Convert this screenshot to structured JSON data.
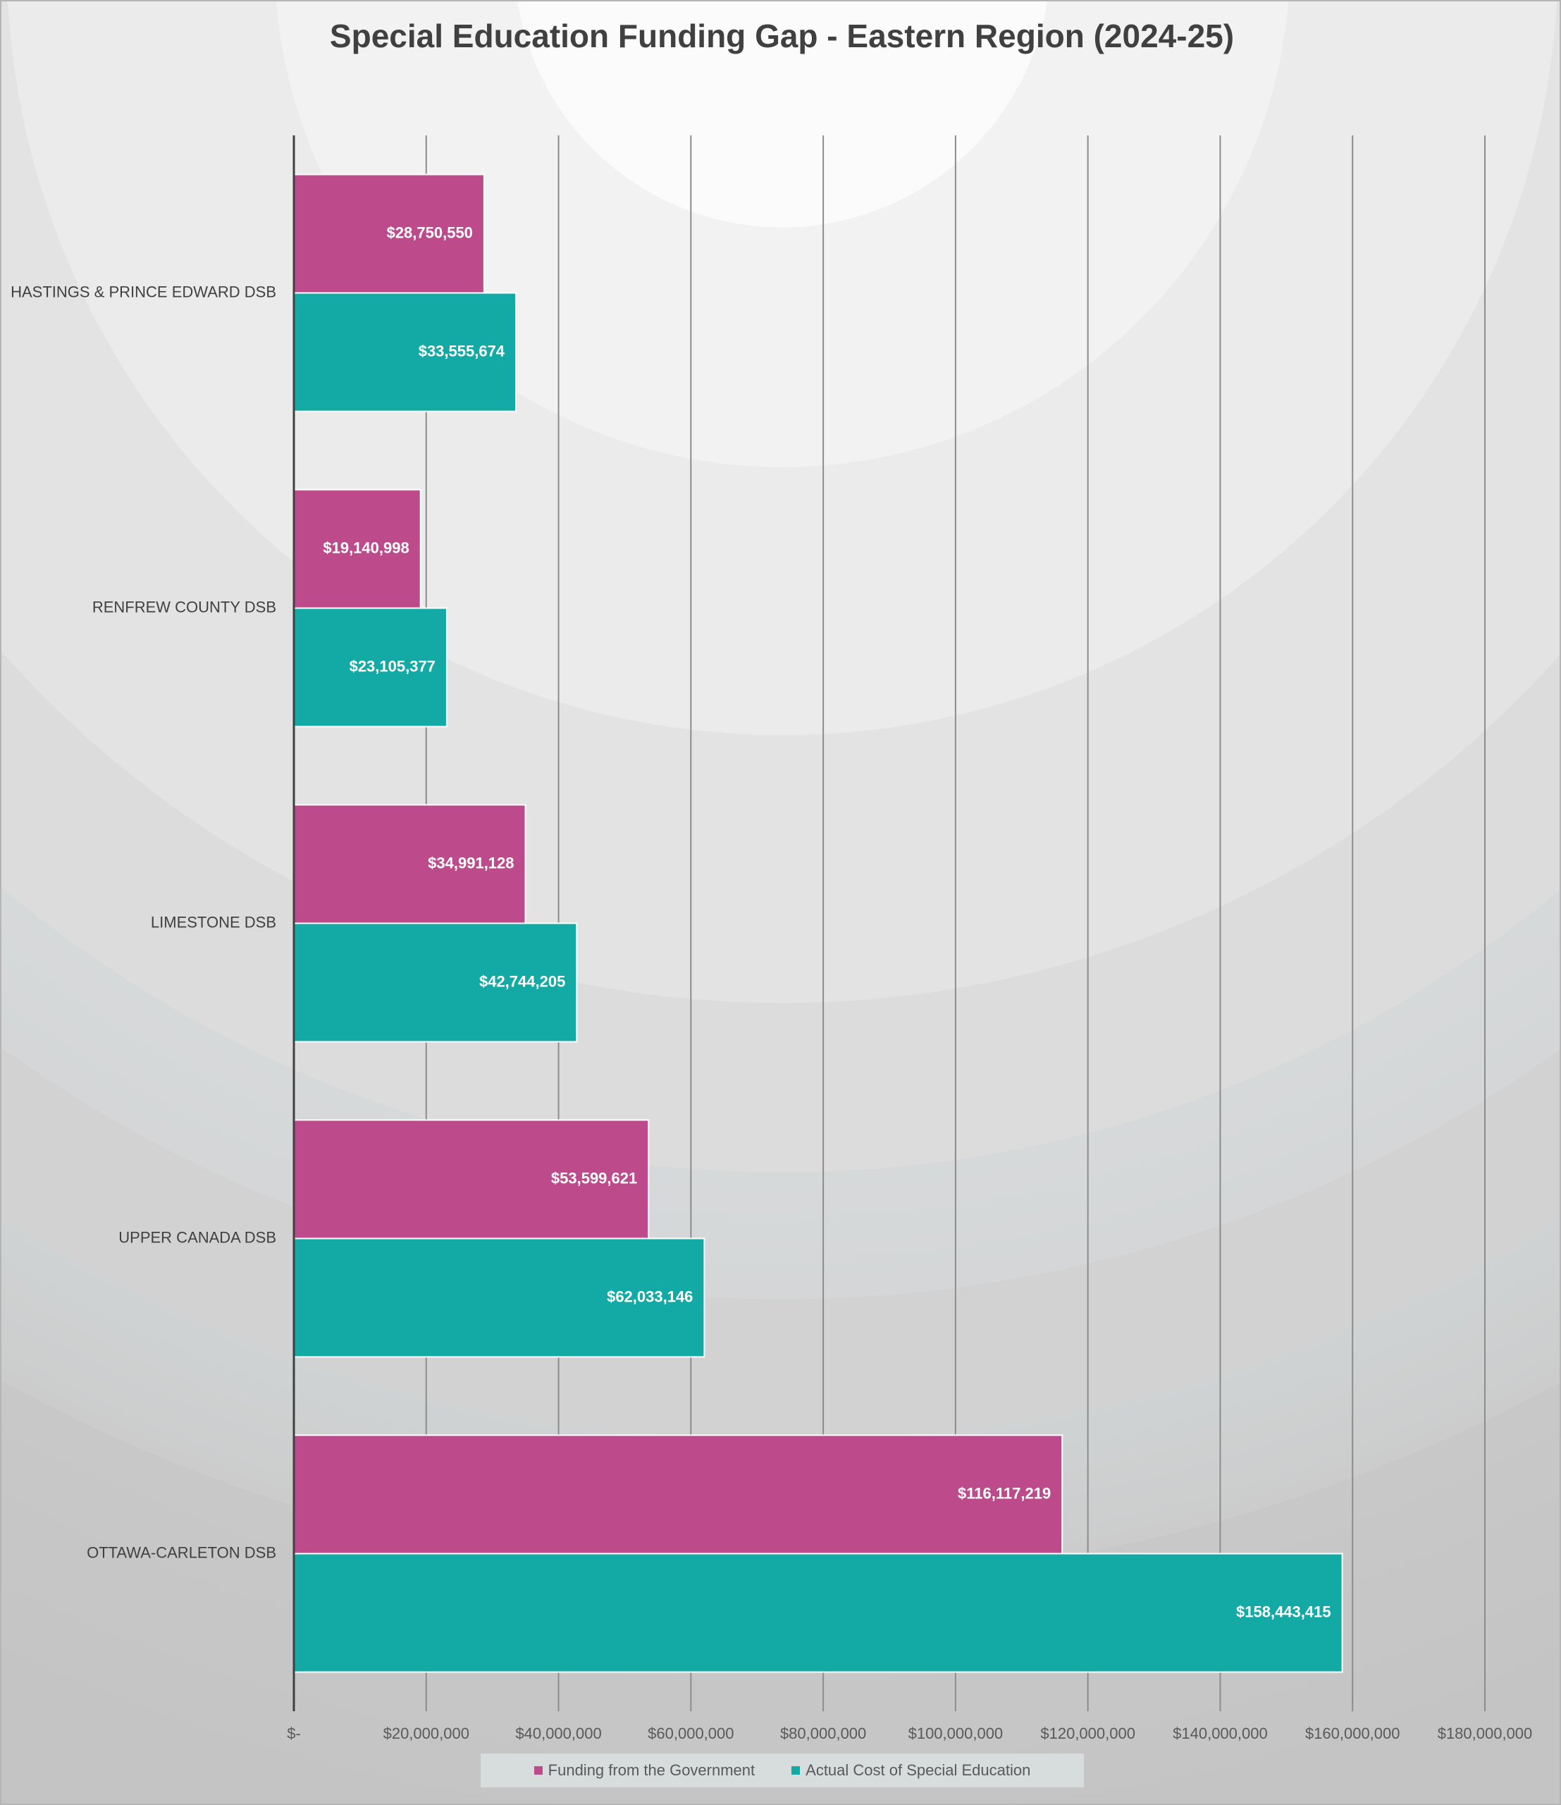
{
  "chart_data": {
    "type": "bar",
    "orientation": "horizontal",
    "title": "Special Education Funding Gap - Eastern Region (2024-25)",
    "categories": [
      "HASTINGS & PRINCE EDWARD DSB",
      "RENFREW COUNTY DSB",
      "LIMESTONE DSB",
      "UPPER CANADA DSB",
      "OTTAWA-CARLETON DSB"
    ],
    "series": [
      {
        "name": "Funding from the Government",
        "color": "#bd4b8c",
        "values": [
          28750550,
          19140998,
          34991128,
          53599621,
          116117219
        ],
        "labels": [
          "$28,750,550",
          "$19,140,998",
          "$34,991,128",
          "$53,599,621",
          "$116,117,219"
        ]
      },
      {
        "name": "Actual Cost of Special Education",
        "color": "#13aaa6",
        "values": [
          33555674,
          23105377,
          42744205,
          62033146,
          158443415
        ],
        "labels": [
          "$33,555,674",
          "$23,105,377",
          "$42,744,205",
          "$62,033,146",
          "$158,443,415"
        ]
      }
    ],
    "xlim": [
      0,
      180000000
    ],
    "xticks": [
      0,
      20000000,
      40000000,
      60000000,
      80000000,
      100000000,
      120000000,
      140000000,
      160000000,
      180000000
    ],
    "xtick_labels": [
      "$-",
      "$20,000,000",
      "$40,000,000",
      "$60,000,000",
      "$80,000,000",
      "$100,000,000",
      "$120,000,000",
      "$140,000,000",
      "$160,000,000",
      "$180,000,000"
    ],
    "grid": "vertical",
    "legend_position": "bottom"
  }
}
